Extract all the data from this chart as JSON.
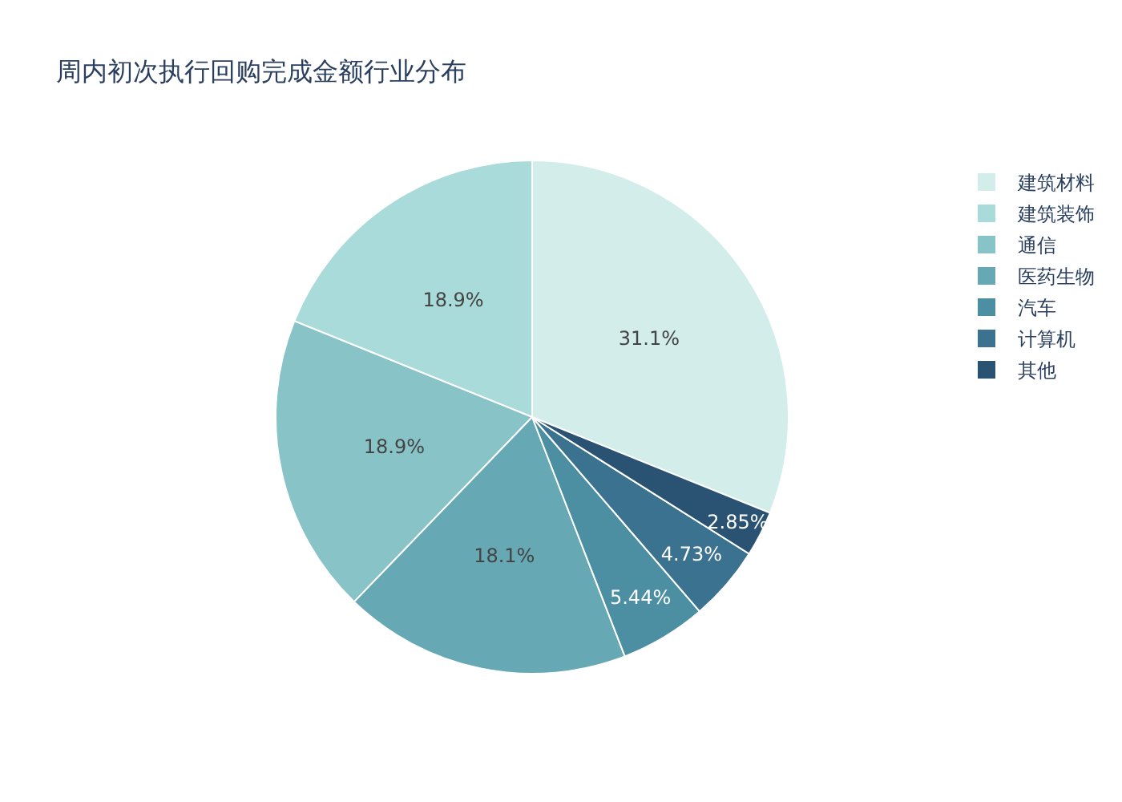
{
  "chart_data": {
    "type": "pie",
    "title": "周内初次执行回购完成金额行业分布",
    "categories": [
      "建筑材料",
      "建筑装饰",
      "通信",
      "医药生物",
      "汽车",
      "计算机",
      "其他"
    ],
    "values": [
      31.1,
      18.9,
      18.9,
      18.1,
      5.44,
      4.73,
      2.85
    ],
    "value_labels": [
      "31.1%",
      "18.9%",
      "18.9%",
      "18.1%",
      "5.44%",
      "4.73%",
      "2.85%"
    ],
    "colors": [
      "#d3edea",
      "#a8dbd9",
      "#88c3c8",
      "#66a9b5",
      "#4c8fa3",
      "#3a7290",
      "#2a5373"
    ],
    "legend": "top right"
  }
}
